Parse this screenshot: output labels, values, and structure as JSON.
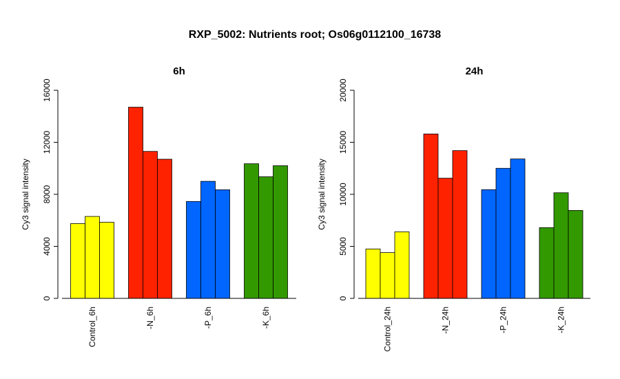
{
  "figure": {
    "title": "RXP_5002: Nutrients root; Os06g0112100_16738"
  },
  "chart_data": [
    {
      "type": "bar",
      "title": "6h",
      "xlabel": "",
      "ylabel": "Cy3 signal intensity",
      "ylim": [
        0,
        16000
      ],
      "yticks": [
        0,
        4000,
        8000,
        12000,
        16000
      ],
      "grid": false,
      "categories": [
        "Control_6h",
        "-N_6h",
        "-P_6h",
        "-K_6h"
      ],
      "colors": [
        "#ffff00",
        "#ff2200",
        "#0066ff",
        "#339900"
      ],
      "values": [
        [
          5750,
          6300,
          5850
        ],
        [
          14700,
          11300,
          10700
        ],
        [
          7450,
          9000,
          8350
        ],
        [
          10350,
          9350,
          10200
        ]
      ]
    },
    {
      "type": "bar",
      "title": "24h",
      "xlabel": "",
      "ylabel": "Cy3 signal intensity",
      "ylim": [
        0,
        20000
      ],
      "yticks": [
        0,
        5000,
        10000,
        15000,
        20000
      ],
      "grid": false,
      "categories": [
        "Control_24h",
        "-N_24h",
        "-P_24h",
        "-K_24h"
      ],
      "colors": [
        "#ffff00",
        "#ff2200",
        "#0066ff",
        "#339900"
      ],
      "values": [
        [
          4750,
          4400,
          6400
        ],
        [
          15800,
          11550,
          14200
        ],
        [
          10450,
          12500,
          13400
        ],
        [
          6800,
          10150,
          8450
        ]
      ]
    }
  ]
}
